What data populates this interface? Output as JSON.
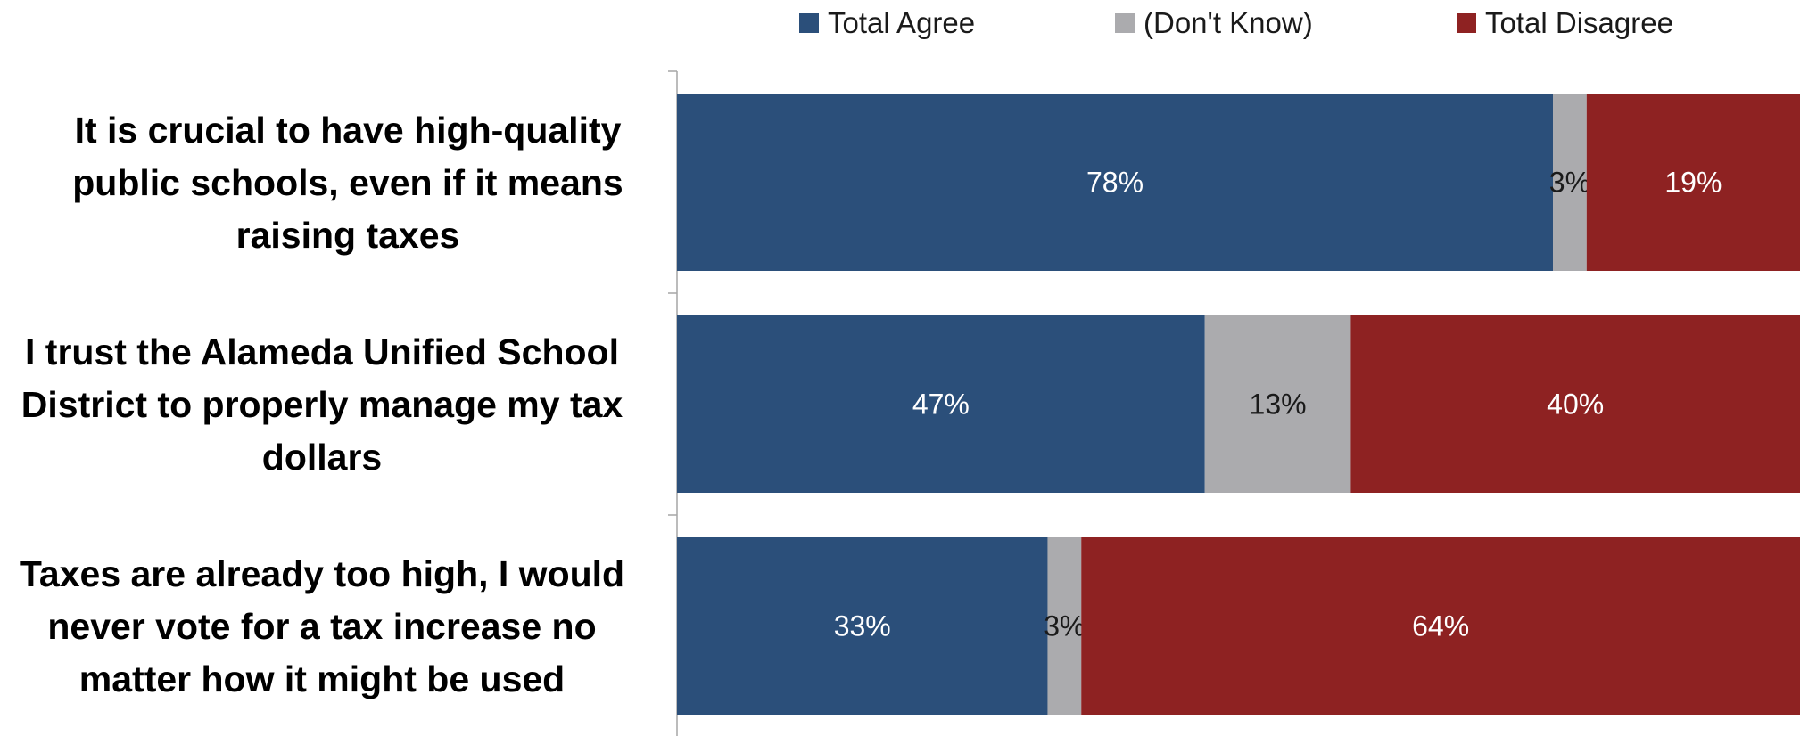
{
  "chart_data": {
    "type": "bar",
    "orientation": "horizontal",
    "stacked": true,
    "categories": [
      "It is crucial to have high-quality public schools, even if it means raising taxes",
      "I trust the Alameda Unified School District to properly manage my tax dollars",
      "Taxes are already too high, I would never vote for a tax increase no matter how it might be used"
    ],
    "series": [
      {
        "name": "Total Agree",
        "values": [
          78,
          47,
          33
        ],
        "labels": [
          "78%",
          "47%",
          "33%"
        ],
        "color": "#2B4F7A",
        "label_color": "#ffffff"
      },
      {
        "name": "(Don't Know)",
        "values": [
          3,
          13,
          3
        ],
        "labels": [
          "3%",
          "13%",
          "3%"
        ],
        "color": "#ABABAE",
        "label_color": "#1a1a1a"
      },
      {
        "name": "Total Disagree",
        "values": [
          19,
          40,
          64
        ],
        "labels": [
          "19%",
          "40%",
          "64%"
        ],
        "color": "#8E2222",
        "label_color": "#ffffff"
      }
    ],
    "xlim": [
      0,
      100
    ],
    "legend_position": "top",
    "grid": false
  }
}
